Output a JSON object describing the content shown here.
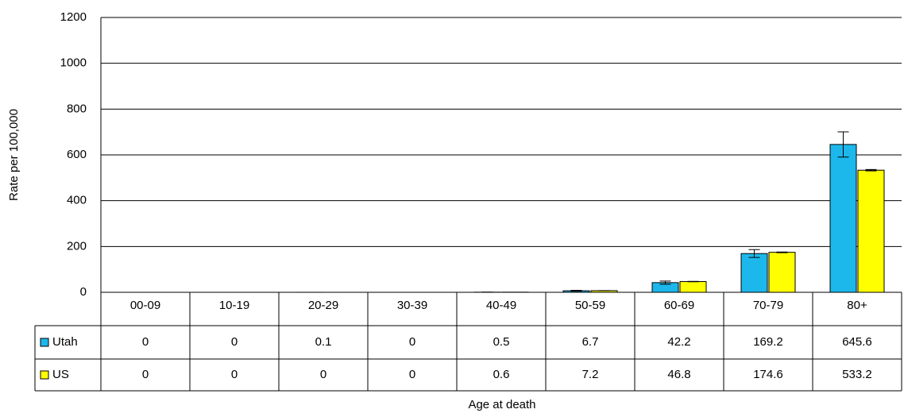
{
  "chart_data": {
    "type": "bar",
    "y_label": "Rate per 100,000",
    "x_label": "Age at death",
    "categories": [
      "00-09",
      "10-19",
      "20-29",
      "30-39",
      "40-49",
      "50-59",
      "60-69",
      "70-79",
      "80+"
    ],
    "series": [
      {
        "name": "Utah",
        "color": "#1cb8ec",
        "values": [
          0,
          0,
          0.1,
          0,
          0.5,
          6.7,
          42.2,
          169.2,
          645.6
        ],
        "errors": [
          0,
          0,
          0,
          0,
          0.3,
          2,
          7,
          17,
          55
        ]
      },
      {
        "name": "US",
        "color": "#ffff00",
        "values": [
          0,
          0,
          0,
          0,
          0.6,
          7.2,
          46.8,
          174.6,
          533.2
        ],
        "errors": [
          0,
          0,
          0,
          0,
          0,
          0.2,
          0.8,
          1.5,
          3
        ]
      }
    ],
    "ylim": [
      0,
      1200
    ],
    "yticks": [
      0,
      200,
      400,
      600,
      800,
      1000,
      1200
    ],
    "grid": true
  }
}
